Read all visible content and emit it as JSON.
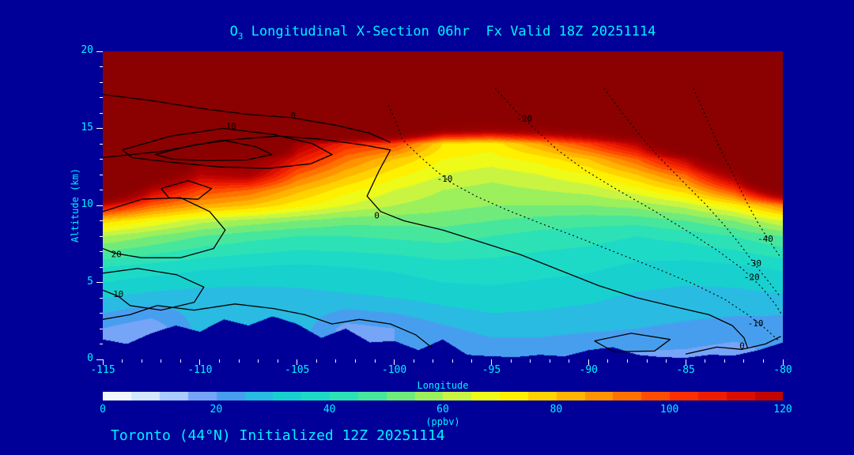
{
  "colors": {
    "background": "#000099",
    "text": "#00f2ff",
    "tick": "#ffffff",
    "contour_line": "#000000"
  },
  "title": {
    "prefix": "O",
    "sub": "3",
    "rest": " Longitudinal X-Section 06hr  Fx Valid 18Z 20251114"
  },
  "footer": {
    "text": "Toronto (44°N) Initialized 12Z 20251114"
  },
  "axes": {
    "x": {
      "label": "Longitude",
      "min": -115,
      "max": -80,
      "major_ticks": [
        -115,
        -110,
        -105,
        -100,
        -95,
        -90,
        -85,
        -80
      ],
      "minor_step": 1
    },
    "y": {
      "label": "Altitude (km)",
      "min": 0,
      "max": 20,
      "major_ticks": [
        0,
        5,
        10,
        15,
        20
      ],
      "minor_step": 1
    }
  },
  "colorbar": {
    "label": "(ppbv)",
    "min": 0,
    "max": 120,
    "ticks": [
      0,
      20,
      40,
      60,
      80,
      100,
      120
    ]
  },
  "chart_data": {
    "type": "heatmap",
    "title": "O3 Longitudinal X-Section 06hr  Fx Valid 18Z 20251114",
    "xlabel": "Longitude",
    "ylabel": "Altitude (km)",
    "units": "ppbv",
    "xlim": [
      -115,
      -80
    ],
    "ylim": [
      0,
      20
    ],
    "value_range_shown": [
      0,
      120
    ],
    "lons": [
      -115,
      -112.5,
      -110,
      -107.5,
      -105,
      -102.5,
      -100,
      -97.5,
      -95,
      -92.5,
      -90,
      -87.5,
      -85,
      -82.5,
      -80
    ],
    "alts": [
      20,
      15,
      14,
      13,
      12,
      11,
      10,
      9,
      8,
      6,
      4,
      2,
      0
    ],
    "values": [
      [
        250,
        250,
        250,
        250,
        250,
        250,
        250,
        250,
        250,
        250,
        250,
        250,
        250,
        250,
        250
      ],
      [
        250,
        250,
        250,
        250,
        230,
        200,
        170,
        140,
        135,
        140,
        150,
        170,
        200,
        250,
        250
      ],
      [
        250,
        250,
        250,
        250,
        125,
        105,
        100,
        75,
        72,
        85,
        100,
        120,
        180,
        250,
        250
      ],
      [
        250,
        250,
        135,
        140,
        110,
        92,
        80,
        70,
        68,
        72,
        80,
        95,
        120,
        170,
        250
      ],
      [
        250,
        160,
        120,
        125,
        95,
        82,
        72,
        65,
        62,
        65,
        70,
        80,
        95,
        130,
        220
      ],
      [
        180,
        120,
        100,
        95,
        82,
        72,
        65,
        60,
        58,
        60,
        62,
        68,
        78,
        100,
        150
      ],
      [
        115,
        95,
        85,
        80,
        72,
        65,
        60,
        57,
        55,
        55,
        55,
        57,
        62,
        72,
        90
      ],
      [
        78,
        70,
        62,
        58,
        55,
        52,
        52,
        52,
        50,
        48,
        47,
        47,
        50,
        55,
        65
      ],
      [
        60,
        55,
        50,
        47,
        45,
        45,
        46,
        47,
        45,
        43,
        42,
        40,
        42,
        45,
        50
      ],
      [
        40,
        38,
        36,
        35,
        34,
        35,
        36,
        38,
        38,
        37,
        36,
        34,
        33,
        34,
        36
      ],
      [
        30,
        28,
        27,
        27,
        28,
        29,
        30,
        32,
        33,
        32,
        31,
        29,
        28,
        28,
        29
      ],
      [
        20,
        16,
        null,
        null,
        null,
        18,
        20,
        24,
        27,
        27,
        26,
        25,
        24,
        23,
        22
      ],
      [
        null,
        null,
        null,
        null,
        null,
        null,
        null,
        18,
        20,
        20,
        18,
        18,
        18,
        16,
        null
      ]
    ],
    "terrain_lons": [
      -115,
      -113.75,
      -112.5,
      -111.25,
      -110,
      -108.75,
      -107.5,
      -106.25,
      -105,
      -103.75,
      -102.5,
      -101.25,
      -100,
      -98.75,
      -97.5,
      -96.25,
      -95,
      -93.75,
      -92.5,
      -91.25,
      -90,
      -88.75,
      -87.5,
      -86.25,
      -85,
      -83.75,
      -82.5,
      -81.25,
      -80
    ],
    "terrain_alt_km": [
      1.3,
      1.0,
      1.7,
      2.2,
      1.8,
      2.6,
      2.2,
      2.8,
      2.3,
      1.4,
      2.0,
      1.1,
      1.2,
      0.6,
      1.3,
      0.3,
      0.2,
      0.15,
      0.3,
      0.2,
      0.6,
      0.8,
      0.3,
      0.15,
      0.1,
      0.3,
      0.25,
      0.6,
      1.1
    ],
    "colormap_stops": [
      [
        0,
        "#ffffff"
      ],
      [
        8,
        "#cfe6ff"
      ],
      [
        14,
        "#9cc2ff"
      ],
      [
        20,
        "#5a8ff2"
      ],
      [
        26,
        "#2fb4e8"
      ],
      [
        32,
        "#17d0d0"
      ],
      [
        40,
        "#1fdfc3"
      ],
      [
        48,
        "#4ae69a"
      ],
      [
        56,
        "#8eee62"
      ],
      [
        64,
        "#d6f63a"
      ],
      [
        70,
        "#ffff00"
      ],
      [
        80,
        "#ffc400"
      ],
      [
        90,
        "#ff8400"
      ],
      [
        100,
        "#ff3a00"
      ],
      [
        110,
        "#e61300"
      ],
      [
        120,
        "#b40000"
      ],
      [
        135,
        "#960000"
      ],
      [
        150,
        "#8b0000"
      ]
    ],
    "contour_lines": [
      {
        "level": 0,
        "style": "solid",
        "points": [
          [
            -115,
            13.1
          ],
          [
            -112,
            13.5
          ],
          [
            -109,
            14.2
          ],
          [
            -106,
            14.5
          ],
          [
            -103.8,
            14.3
          ],
          [
            -101.5,
            13.9
          ],
          [
            -100.2,
            13.6
          ],
          [
            -100.8,
            12.2
          ],
          [
            -101.4,
            10.6
          ],
          [
            -100.7,
            9.6
          ],
          [
            -99.5,
            9.0
          ],
          [
            -97.5,
            8.4
          ],
          [
            -95.5,
            7.6
          ],
          [
            -93.5,
            6.8
          ],
          [
            -91.5,
            5.8
          ],
          [
            -89.5,
            4.8
          ],
          [
            -87.5,
            4.0
          ],
          [
            -85.5,
            3.4
          ],
          [
            -83.8,
            2.9
          ],
          [
            -82.6,
            2.2
          ],
          [
            -82.0,
            1.4
          ],
          [
            -81.8,
            0.7
          ]
        ],
        "labels": [
          [
            -100.9,
            9.3
          ]
        ]
      },
      {
        "level": 0,
        "style": "solid",
        "points": [
          [
            -115,
            17.2
          ],
          [
            -112.5,
            16.8
          ],
          [
            -110,
            16.3
          ],
          [
            -107.5,
            15.9
          ],
          [
            -105.3,
            15.7
          ],
          [
            -103,
            15.2
          ],
          [
            -101.3,
            14.7
          ],
          [
            -100.2,
            14.1
          ]
        ],
        "labels": [
          [
            -105.2,
            15.8
          ]
        ]
      },
      {
        "level": 10,
        "style": "solid",
        "points": [
          [
            -114,
            13.6
          ],
          [
            -111.5,
            14.5
          ],
          [
            -108.8,
            15.0
          ],
          [
            -106.2,
            14.6
          ],
          [
            -104.2,
            14.0
          ],
          [
            -103.2,
            13.3
          ],
          [
            -104.3,
            12.7
          ],
          [
            -106.5,
            12.4
          ],
          [
            -109,
            12.5
          ],
          [
            -111.5,
            12.8
          ],
          [
            -113.5,
            13.1
          ],
          [
            -114,
            13.6
          ]
        ],
        "labels": [
          [
            -108.4,
            15.1
          ]
        ]
      },
      {
        "level": 20,
        "style": "solid",
        "points": [
          [
            -112.3,
            13.3
          ],
          [
            -110.4,
            13.9
          ],
          [
            -108.7,
            14.2
          ],
          [
            -107.1,
            13.8
          ],
          [
            -106.3,
            13.3
          ],
          [
            -107.6,
            12.95
          ],
          [
            -109.6,
            12.9
          ],
          [
            -111.4,
            13.0
          ],
          [
            -112.3,
            13.3
          ]
        ],
        "labels": []
      },
      {
        "level": 20,
        "style": "solid",
        "points": [
          [
            -115,
            9.6
          ],
          [
            -113,
            10.4
          ],
          [
            -111,
            10.5
          ],
          [
            -109.5,
            9.6
          ],
          [
            -108.7,
            8.4
          ],
          [
            -109.3,
            7.2
          ],
          [
            -111,
            6.6
          ],
          [
            -113,
            6.6
          ],
          [
            -114.4,
            6.9
          ],
          [
            -115,
            7.2
          ]
        ],
        "labels": [
          [
            -114.3,
            6.8
          ]
        ]
      },
      {
        "level": 10,
        "style": "solid",
        "points": [
          [
            -115,
            5.6
          ],
          [
            -113.2,
            5.9
          ],
          [
            -111.2,
            5.5
          ],
          [
            -109.8,
            4.7
          ],
          [
            -110.3,
            3.7
          ],
          [
            -112,
            3.2
          ],
          [
            -113.6,
            3.5
          ],
          [
            -114.2,
            4.1
          ],
          [
            -115,
            4.5
          ]
        ],
        "labels": [
          [
            -114.2,
            4.2
          ]
        ]
      },
      {
        "level": 20,
        "style": "solid",
        "points": [
          [
            -112,
            11.1
          ],
          [
            -110.6,
            11.6
          ],
          [
            -109.4,
            11.1
          ],
          [
            -110.1,
            10.4
          ],
          [
            -111.6,
            10.5
          ],
          [
            -112,
            11.1
          ]
        ],
        "labels": []
      },
      {
        "level": 0,
        "style": "solid",
        "points": [
          [
            -115,
            2.6
          ],
          [
            -113.6,
            2.9
          ],
          [
            -112.2,
            3.5
          ],
          [
            -110.3,
            3.2
          ],
          [
            -108.2,
            3.6
          ],
          [
            -106.2,
            3.3
          ],
          [
            -104.6,
            2.9
          ],
          [
            -103.2,
            2.3
          ],
          [
            -101.8,
            2.6
          ],
          [
            -100.2,
            2.3
          ],
          [
            -98.9,
            1.6
          ],
          [
            -98.1,
            0.8
          ]
        ],
        "labels": []
      },
      {
        "level": 0,
        "style": "solid",
        "points": [
          [
            -89.7,
            1.2
          ],
          [
            -87.8,
            1.7
          ],
          [
            -85.8,
            1.3
          ],
          [
            -86.6,
            0.55
          ],
          [
            -88.7,
            0.5
          ],
          [
            -89.7,
            1.2
          ]
        ],
        "labels": []
      },
      {
        "level": 0,
        "style": "solid",
        "points": [
          [
            -85,
            0.35
          ],
          [
            -83.4,
            0.8
          ],
          [
            -82.1,
            0.65
          ],
          [
            -80.9,
            1.0
          ],
          [
            -80.1,
            1.5
          ]
        ],
        "labels": [
          [
            -82.1,
            0.85
          ]
        ]
      },
      {
        "level": -10,
        "style": "dotted",
        "points": [
          [
            -100.3,
            16.5
          ],
          [
            -99.9,
            15.4
          ],
          [
            -99.6,
            14.3
          ],
          [
            -98.7,
            13.2
          ],
          [
            -97.9,
            12.3
          ],
          [
            -97.1,
            11.5
          ],
          [
            -95.8,
            10.6
          ],
          [
            -94.2,
            9.7
          ],
          [
            -92.4,
            8.8
          ],
          [
            -90.5,
            7.9
          ],
          [
            -88.5,
            6.9
          ],
          [
            -86.5,
            5.9
          ],
          [
            -84.6,
            4.9
          ],
          [
            -83,
            3.9
          ],
          [
            -81.8,
            2.9
          ],
          [
            -80.9,
            2.0
          ],
          [
            -80.2,
            1.2
          ]
        ],
        "labels": [
          [
            -97.4,
            11.7
          ],
          [
            -81.4,
            2.3
          ]
        ]
      },
      {
        "level": -20,
        "style": "dotted",
        "points": [
          [
            -94.8,
            17.6
          ],
          [
            -93.8,
            16.2
          ],
          [
            -92.8,
            15.0
          ],
          [
            -91.6,
            13.6
          ],
          [
            -90.2,
            12.3
          ],
          [
            -88.5,
            11.0
          ],
          [
            -86.7,
            9.7
          ],
          [
            -85,
            8.4
          ],
          [
            -83.4,
            7.1
          ],
          [
            -82.1,
            5.9
          ],
          [
            -81.1,
            4.7
          ],
          [
            -80.4,
            3.6
          ],
          [
            -80.05,
            2.9
          ]
        ],
        "labels": [
          [
            -93.3,
            15.6
          ],
          [
            -81.6,
            5.3
          ]
        ]
      },
      {
        "level": -30,
        "style": "dotted",
        "points": [
          [
            -89.2,
            17.6
          ],
          [
            -88.2,
            15.9
          ],
          [
            -87.2,
            14.3
          ],
          [
            -86.2,
            12.9
          ],
          [
            -85.1,
            11.5
          ],
          [
            -84,
            10.1
          ],
          [
            -83,
            8.7
          ],
          [
            -82.1,
            7.3
          ],
          [
            -81.4,
            6.1
          ],
          [
            -80.7,
            5.0
          ],
          [
            -80.15,
            4.1
          ]
        ],
        "labels": [
          [
            -81.5,
            6.2
          ]
        ]
      },
      {
        "level": -40,
        "style": "dotted",
        "points": [
          [
            -84.6,
            17.6
          ],
          [
            -83.9,
            15.6
          ],
          [
            -83.2,
            13.6
          ],
          [
            -82.5,
            11.9
          ],
          [
            -81.9,
            10.3
          ],
          [
            -81.3,
            8.9
          ],
          [
            -80.7,
            7.7
          ],
          [
            -80.1,
            6.6
          ]
        ],
        "labels": [
          [
            -80.9,
            7.8
          ]
        ]
      }
    ]
  }
}
